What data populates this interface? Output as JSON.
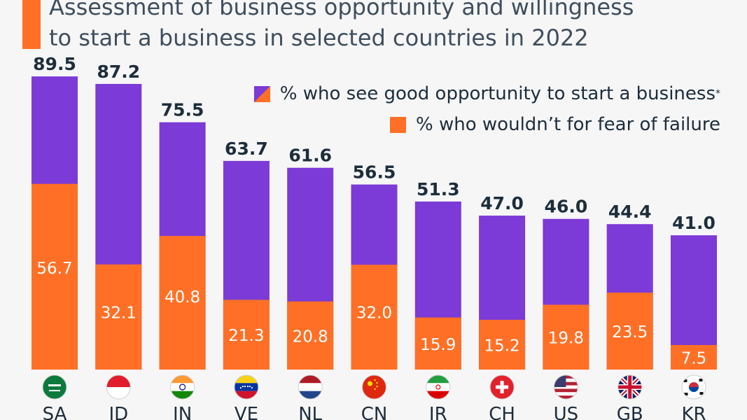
{
  "header": {
    "title_line1": "Assessment of business opportunity and willingness",
    "title_line2": "to start a business in selected countries in 2022"
  },
  "legend": {
    "opportunity": "% who see good opportunity to start a business",
    "opportunity_marker": "*",
    "fear": "% who wouldn’t for fear of failure"
  },
  "colors": {
    "opportunity": "#7c3ad6",
    "fear": "#ff7026",
    "text": "#1d2d3c"
  },
  "chart_data": {
    "type": "bar",
    "categories": [
      "SA",
      "ID",
      "IN",
      "VE",
      "NL",
      "CN",
      "IR",
      "CH",
      "US",
      "GB",
      "KR"
    ],
    "flag_icons": [
      "saudi-arabia-flag-icon",
      "indonesia-flag-icon",
      "india-flag-icon",
      "venezuela-flag-icon",
      "netherlands-flag-icon",
      "china-flag-icon",
      "iran-flag-icon",
      "switzerland-flag-icon",
      "united-states-flag-icon",
      "united-kingdom-flag-icon",
      "south-korea-flag-icon"
    ],
    "series": [
      {
        "name": "% who see good opportunity to start a business",
        "values": [
          89.5,
          87.2,
          75.5,
          63.7,
          61.6,
          56.5,
          51.3,
          47.0,
          46.0,
          44.4,
          41.0
        ]
      },
      {
        "name": "% who wouldn’t for fear of failure",
        "values": [
          56.7,
          32.1,
          40.8,
          21.3,
          20.8,
          32.0,
          15.9,
          15.2,
          19.8,
          23.5,
          7.5
        ]
      }
    ],
    "value_labels_top": [
      "89.5",
      "87.2",
      "75.5",
      "63.7",
      "61.6",
      "56.5",
      "51.3",
      "47.0",
      "46.0",
      "44.4",
      "41.0"
    ],
    "value_labels_inner": [
      "56.7",
      "32.1",
      "40.8",
      "21.3",
      "20.8",
      "32.0",
      "15.9",
      "15.2",
      "19.8",
      "23.5",
      "7.5"
    ],
    "layout": "overlapping",
    "ylim": [
      0,
      100
    ],
    "grid": false
  }
}
